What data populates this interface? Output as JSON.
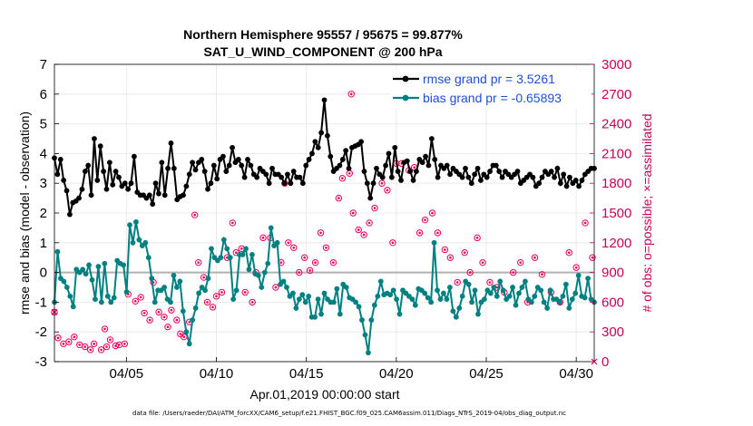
{
  "colors": {
    "rmse": "#000000",
    "bias": "#008080",
    "obs": "#e6005c",
    "zero_line": "#b0b0b0",
    "legend_text": "#1f4fd6",
    "right_axis": "#c8005a"
  },
  "chart_data": {
    "type": "line",
    "title": "Northern Hemisphere 95557 / 95675 = 99.877%",
    "subtitle": "SAT_U_WIND_COMPONENT @ 200 hPa",
    "xlabel": "Apr.01,2019 00:00:00 start",
    "ylabel": "rmse and bias (model - observation)",
    "ylabel_right": "# of obs: o=possible; ×=assimilated",
    "xlim": [
      1,
      31
    ],
    "ylim": [
      -3,
      7
    ],
    "ylim_right": [
      0,
      3000
    ],
    "x_ticks": [
      5,
      10,
      15,
      20,
      25,
      30
    ],
    "x_tick_labels": [
      "04/05",
      "04/10",
      "04/15",
      "04/20",
      "04/25",
      "04/30"
    ],
    "y_ticks": [
      "-3",
      "-2",
      "-1",
      "0",
      "1",
      "2",
      "3",
      "4",
      "5",
      "6",
      "7"
    ],
    "y_ticks_right": [
      "0",
      "300",
      "600",
      "900",
      "1200",
      "1500",
      "1800",
      "2100",
      "2400",
      "2700",
      "3000"
    ],
    "legend": {
      "rmse": "rmse grand pr = 3.5261",
      "bias": "bias grand pr = -0.65893",
      "position": "top-right"
    },
    "rmse": [
      3.85,
      3.3,
      3.8,
      3.1,
      2.75,
      1.95,
      2.35,
      2.4,
      2.5,
      2.8,
      3.4,
      3.6,
      2.6,
      4.5,
      3.1,
      4.25,
      3.4,
      2.8,
      3.7,
      2.95,
      3.4,
      3.2,
      2.9,
      3.0,
      2.8,
      3.0,
      3.9,
      2.7,
      2.6,
      2.6,
      2.5,
      2.6,
      2.3,
      3.0,
      2.65,
      3.7,
      2.6,
      3.5,
      4.35,
      3.5,
      2.45,
      2.55,
      2.6,
      2.9,
      3.3,
      3.7,
      3.45,
      3.7,
      3.8,
      3.4,
      2.8,
      3.0,
      3.6,
      3.15,
      3.8,
      3.9,
      3.4,
      3.6,
      4.2,
      3.7,
      3.8,
      3.6,
      3.2,
      3.8,
      3.6,
      3.3,
      3.2,
      3.5,
      3.4,
      3.3,
      3.0,
      3.5,
      3.3,
      3.3,
      3.2,
      3.0,
      3.3,
      3.0,
      3.4,
      3.2,
      3.2,
      3.0,
      3.6,
      3.8,
      4.0,
      4.4,
      4.2,
      4.7,
      5.8,
      4.6,
      3.9,
      3.4,
      3.5,
      3.6,
      3.8,
      4.1,
      3.5,
      4.2,
      4.25,
      4.3,
      4.4,
      3.4,
      3.0,
      2.5,
      3.0,
      3.5,
      3.3,
      3.2,
      3.6,
      4.0,
      3.2,
      4.2,
      3.4,
      3.1,
      3.7,
      3.75,
      3.4,
      3.1,
      3.4,
      3.8,
      3.7,
      3.9,
      3.6,
      4.5,
      3.8,
      3.2,
      3.6,
      3.5,
      3.6,
      3.3,
      3.5,
      3.4,
      3.3,
      3.2,
      3.5,
      3.2,
      3.0,
      3.3,
      3.5,
      3.1,
      3.3,
      3.2,
      3.4,
      3.6,
      3.6,
      3.4,
      3.2,
      3.4,
      3.3,
      3.2,
      3.3,
      3.4,
      3.0,
      3.1,
      3.2,
      3.3,
      3.2,
      2.9,
      3.0,
      3.2,
      3.4,
      3.3,
      3.4,
      3.2,
      3.5,
      3.0,
      3.3,
      2.9,
      3.2,
      3.0,
      3.1,
      2.9,
      3.1,
      3.3,
      3.4,
      3.5,
      3.5
    ],
    "bias": [
      -1.0,
      0.7,
      -0.2,
      -0.3,
      -0.5,
      -0.8,
      -1.15,
      0.1,
      0.0,
      0.1,
      -0.05,
      0.25,
      -0.25,
      -0.9,
      0.2,
      -1.0,
      0.3,
      -0.8,
      -1.0,
      -0.85,
      0.4,
      0.3,
      0.25,
      -0.65,
      1.6,
      1.0,
      1.7,
      1.1,
      0.9,
      1.0,
      0.5,
      -0.2,
      -1.0,
      -0.6,
      -0.6,
      -0.5,
      -0.9,
      -1.0,
      -0.1,
      -0.5,
      -0.3,
      -1.3,
      -2.0,
      -2.4,
      -1.6,
      -1.2,
      -0.7,
      -0.5,
      -0.6,
      -0.2,
      0.8,
      0.5,
      0.4,
      0.5,
      1.1,
      0.8,
      0.5,
      -0.9,
      -0.6,
      0.6,
      0.6,
      0.8,
      0.1,
      0.6,
      -0.05,
      -0.1,
      -0.5,
      0.0,
      0.3,
      1.5,
      0.9,
      1.0,
      -0.4,
      -0.3,
      -0.5,
      -0.8,
      -0.7,
      -1.2,
      -0.9,
      -0.75,
      -1.0,
      -0.8,
      -1.5,
      -1.5,
      -0.9,
      -1.4,
      -0.7,
      -0.9,
      -1.0,
      -1.0,
      -0.55,
      -1.4,
      -0.4,
      -0.5,
      -0.85,
      -0.9,
      -1.0,
      -1.15,
      -1.6,
      -2.1,
      -2.7,
      -1.6,
      -1.1,
      -0.8,
      -0.3,
      -0.75,
      -0.7,
      -0.75,
      -0.6,
      -0.9,
      -1.4,
      -0.6,
      -0.7,
      -0.8,
      -0.9,
      -1.1,
      -0.55,
      -0.6,
      -0.7,
      -0.85,
      -1.0,
      1.0,
      -0.6,
      -0.9,
      -0.7,
      -0.9,
      -0.5,
      -1.3,
      -1.5,
      -1.2,
      -0.8,
      -0.3,
      -0.4,
      -1.0,
      -0.6,
      -1.4,
      -1.0,
      -0.9,
      -0.6,
      -0.7,
      -0.5,
      -0.8,
      -0.3,
      -0.6,
      -0.9,
      -0.8,
      -0.5,
      -1.1,
      -0.7,
      -0.5,
      -0.3,
      -0.9,
      -1.0,
      -0.8,
      -0.5,
      -0.6,
      -1.0,
      -1.2,
      -0.6,
      -0.9,
      -0.9,
      -1.0,
      -0.8,
      -0.4,
      -1.2,
      -0.9,
      -0.7,
      -0.1,
      -0.8,
      -0.85,
      -0.2,
      -0.9,
      -1.0
    ],
    "obs_possible": [
      500,
      240,
      180,
      200,
      250,
      170,
      150,
      120,
      180,
      120,
      150,
      220,
      330,
      160,
      170,
      180,
      680,
      610,
      650,
      490,
      420,
      800,
      500,
      450,
      350,
      520,
      420,
      280,
      250,
      400,
      1480,
      1000,
      850,
      600,
      550,
      660,
      700,
      1050,
      1400,
      1100,
      1140,
      700,
      600,
      900,
      1250,
      1250,
      750,
      1000,
      1800,
      1200,
      1150,
      900,
      1050,
      920,
      1000,
      1300,
      1150,
      1000,
      1650,
      1850,
      1900,
      1500,
      1330,
      2700,
      1280,
      1400,
      1550,
      1800,
      1730,
      1200,
      2000,
      2000,
      1930,
      1960,
      1300,
      1430,
      1500,
      1300,
      1130,
      1050,
      800,
      1100,
      900,
      1250,
      1000,
      800,
      750,
      700,
      900,
      1000,
      600,
      1050,
      880,
      700,
      600,
      1100,
      950,
      1400,
      1050
    ],
    "obs_possible_x": [
      1.0,
      1.2,
      1.5,
      1.8,
      2.1,
      2.4,
      2.7,
      3.0,
      3.2,
      3.6,
      3.9,
      4.1,
      3.8,
      4.4,
      4.6,
      4.9,
      5.1,
      5.5,
      5.8,
      6.0,
      6.3,
      6.5,
      6.8,
      7.1,
      7.3,
      7.5,
      7.8,
      8.0,
      8.2,
      8.5,
      8.8,
      9.0,
      9.3,
      9.5,
      9.8,
      10.0,
      10.3,
      10.6,
      10.9,
      11.1,
      11.4,
      11.6,
      12.0,
      12.2,
      12.6,
      13.0,
      13.3,
      13.6,
      13.8,
      14.0,
      14.3,
      14.6,
      14.9,
      15.2,
      15.5,
      15.8,
      16.1,
      16.5,
      16.8,
      17.0,
      17.4,
      17.6,
      17.9,
      17.5,
      18.2,
      18.5,
      18.8,
      19.2,
      19.5,
      19.8,
      20.0,
      20.3,
      20.7,
      21.0,
      21.3,
      21.6,
      22.0,
      22.3,
      22.7,
      23.0,
      23.4,
      23.8,
      24.1,
      24.5,
      24.8,
      25.2,
      25.6,
      26.0,
      26.5,
      26.9,
      27.3,
      27.7,
      28.1,
      28.6,
      29.1,
      29.6,
      30.0,
      30.5,
      30.9
    ],
    "obs_assimilated_x": [
      1.0,
      31.0
    ],
    "obs_assimilated": [
      500,
      0
    ]
  },
  "footer": "data file: /Users/raeder/DAI/ATM_forcXX/CAM6_setup/f.e21.FHIST_BGC.f09_025.CAM6assim.011/Diags_NTrS_2019-04/obs_diag_output.nc"
}
